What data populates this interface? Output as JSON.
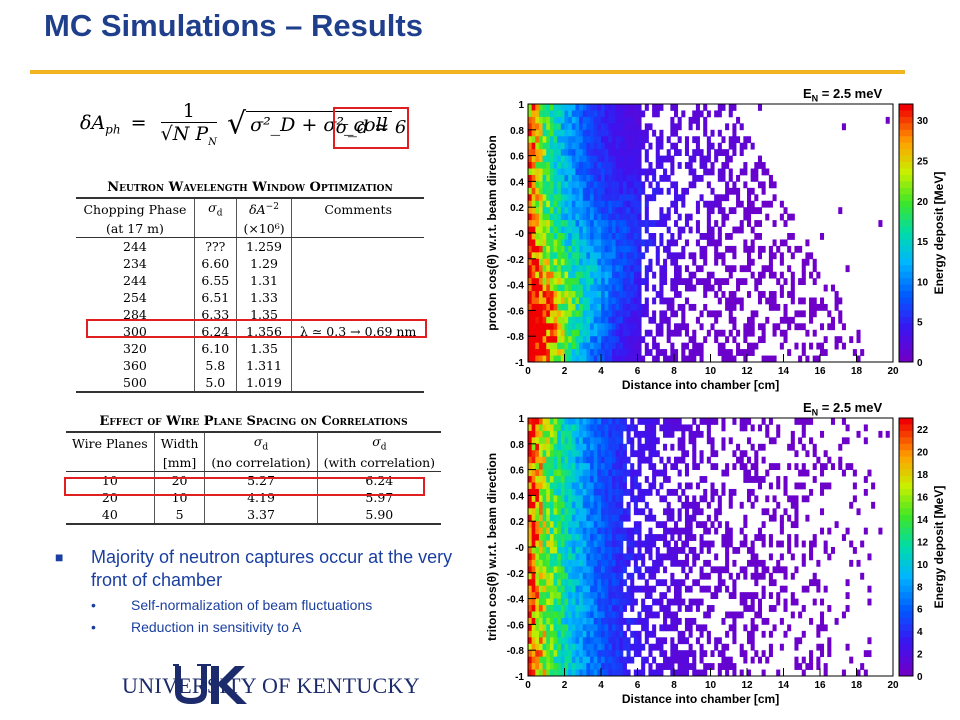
{
  "title": "MC Simulations – Results",
  "formula": {
    "lhs": "δA",
    "lhs_sub": "ph",
    "eq": "=",
    "numerator": "1",
    "denominator": "√N P",
    "denominator_sub": "N",
    "radicand": "σ²_D + σ²_coll",
    "highlight": "σ_d ≃ 6"
  },
  "table1": {
    "caption": "Neutron Wavelength Window Optimization",
    "headers": [
      "Chopping Phase (at 17 m)",
      "σ_d",
      "δA⁻² (×10⁶)",
      "Comments"
    ],
    "header_line1": [
      "Chopping Phase",
      "σ",
      "δA",
      "Comments"
    ],
    "header_line2": [
      "(at 17 m)",
      "",
      "(×10⁶)",
      ""
    ],
    "rows": [
      [
        "244",
        "???",
        "1.259",
        ""
      ],
      [
        "234",
        "6.60",
        "1.29",
        ""
      ],
      [
        "244",
        "6.55",
        "1.31",
        ""
      ],
      [
        "254",
        "6.51",
        "1.33",
        ""
      ],
      [
        "284",
        "6.33",
        "1.35",
        ""
      ],
      [
        "300",
        "6.24",
        "1.356",
        "λ ≃ 0.3 → 0.69 nm"
      ],
      [
        "320",
        "6.10",
        "1.35",
        ""
      ],
      [
        "360",
        "5.8",
        "1.311",
        ""
      ],
      [
        "500",
        "5.0",
        "1.019",
        ""
      ]
    ]
  },
  "table2": {
    "caption": "Effect of Wire Plane Spacing on Correlations",
    "header_line1": [
      "Wire Planes",
      "Width",
      "σ",
      "σ"
    ],
    "header_line2": [
      "",
      "[mm]",
      "(no correlation)",
      "(with correlation)"
    ],
    "rows": [
      [
        "10",
        "20",
        "5.27",
        "6.24"
      ],
      [
        "20",
        "10",
        "4.19",
        "5.97"
      ],
      [
        "40",
        "5",
        "3.37",
        "5.90"
      ]
    ]
  },
  "bullets": {
    "main": "Majority of neutron captures occur at the very front of chamber",
    "sub": [
      "Self-normalization of beam fluctuations",
      "Reduction in sensitivity to A"
    ]
  },
  "logo": {
    "mark": "UK",
    "text": "UNIVERSITY OF KENTUCKY",
    "color": "#1c2b6b"
  },
  "plots": [
    {
      "title_main": "E",
      "title_sub": "N",
      "title_rest": " = 2.5 meV",
      "ylabel": "proton cos(θ) w.r.t. beam direction",
      "xlabel": "Distance into chamber  [cm]",
      "zlabel": "Energy deposit [MeV]",
      "xticks": [
        "0",
        "2",
        "4",
        "6",
        "8",
        "10",
        "12",
        "14",
        "16",
        "18",
        "20"
      ],
      "yticks": [
        "1",
        "0.8",
        "0.6",
        "0.4",
        "0.2",
        "-0",
        "-0.2",
        "-0.4",
        "-0.6",
        "-0.8",
        "-1"
      ],
      "zticks": [
        "30",
        "25",
        "20",
        "15",
        "10",
        "5",
        "0"
      ],
      "zmax": 32
    },
    {
      "title_main": "E",
      "title_sub": "N",
      "title_rest": " = 2.5 meV",
      "ylabel": "triton cos(θ) w.r.t. beam direction",
      "xlabel": "Distance into chamber  [cm]",
      "zlabel": "Energy deposit [MeV]",
      "xticks": [
        "0",
        "2",
        "4",
        "6",
        "8",
        "10",
        "12",
        "14",
        "16",
        "18",
        "20"
      ],
      "yticks": [
        "1",
        "0.8",
        "0.6",
        "0.4",
        "0.2",
        "-0",
        "-0.2",
        "-0.4",
        "-0.6",
        "-0.8",
        "-1"
      ],
      "zticks": [
        "22",
        "20",
        "18",
        "16",
        "14",
        "12",
        "10",
        "8",
        "6",
        "4",
        "2",
        "0"
      ],
      "zmax": 23
    }
  ],
  "colors": {
    "title": "#1f3f8c",
    "rule": "#f0b41e",
    "highlight": "#e02020",
    "bullet_text": "#1a3fa0"
  }
}
